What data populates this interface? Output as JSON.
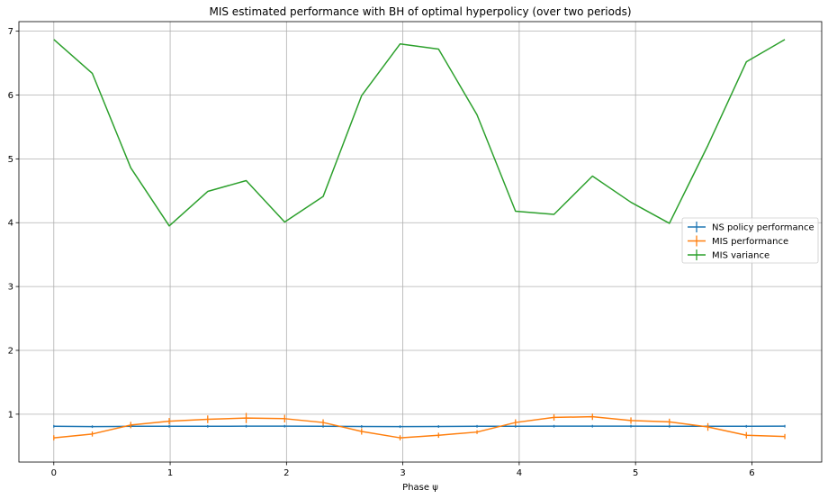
{
  "chart_data": {
    "type": "line",
    "title": "MIS estimated performance with BH of optimal hyperpolicy (over two periods)",
    "xlabel": "Phase ψ",
    "ylabel": "",
    "xlim": [
      -0.3,
      6.6
    ],
    "ylim": [
      0.25,
      7.15
    ],
    "xticks": [
      0,
      1,
      2,
      3,
      4,
      5,
      6
    ],
    "yticks": [
      1,
      2,
      3,
      4,
      5,
      6,
      7
    ],
    "grid": true,
    "legend_position": "center-right",
    "x": [
      0,
      0.3307,
      0.6614,
      0.9921,
      1.3228,
      1.6535,
      1.9842,
      2.3149,
      2.6456,
      2.9762,
      3.3069,
      3.6376,
      3.9683,
      4.299,
      4.6297,
      4.9604,
      5.2911,
      5.6218,
      5.9525,
      6.2832
    ],
    "series": [
      {
        "name": "NS policy performance",
        "color": "#1f77b4",
        "values": [
          0.81,
          0.805,
          0.81,
          0.81,
          0.81,
          0.812,
          0.812,
          0.81,
          0.808,
          0.805,
          0.807,
          0.81,
          0.81,
          0.812,
          0.812,
          0.812,
          0.81,
          0.81,
          0.81,
          0.812
        ],
        "errors": [
          0.008,
          0.008,
          0.008,
          0.008,
          0.008,
          0.008,
          0.008,
          0.008,
          0.008,
          0.008,
          0.008,
          0.008,
          0.008,
          0.008,
          0.008,
          0.008,
          0.008,
          0.008,
          0.008,
          0.008
        ]
      },
      {
        "name": "MIS performance",
        "color": "#ff7f0e",
        "values": [
          0.63,
          0.69,
          0.83,
          0.89,
          0.92,
          0.94,
          0.93,
          0.87,
          0.73,
          0.63,
          0.67,
          0.72,
          0.87,
          0.95,
          0.96,
          0.9,
          0.88,
          0.8,
          0.67,
          0.65
        ],
        "errors": [
          0.04,
          0.04,
          0.05,
          0.05,
          0.06,
          0.08,
          0.06,
          0.05,
          0.05,
          0.04,
          0.04,
          0.03,
          0.05,
          0.05,
          0.05,
          0.05,
          0.05,
          0.06,
          0.05,
          0.04
        ]
      },
      {
        "name": "MIS variance",
        "color": "#2ca02c",
        "values": [
          6.87,
          6.34,
          4.86,
          3.95,
          4.49,
          4.66,
          4.01,
          4.41,
          5.99,
          6.8,
          6.72,
          5.69,
          4.18,
          4.13,
          4.73,
          4.32,
          3.99,
          5.21,
          6.52,
          6.87
        ],
        "errors": [
          0,
          0,
          0,
          0,
          0,
          0,
          0,
          0,
          0,
          0,
          0,
          0,
          0,
          0,
          0,
          0,
          0,
          0,
          0,
          0
        ]
      }
    ]
  }
}
